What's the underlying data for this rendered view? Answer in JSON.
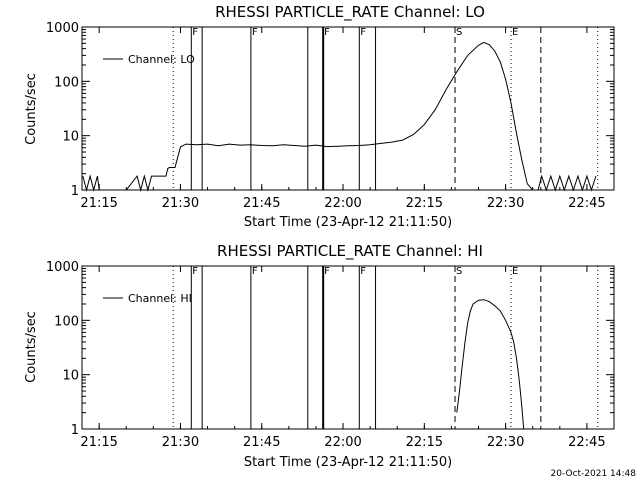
{
  "timestamp": "20-Oct-2021 14:48",
  "chart_data": [
    {
      "type": "line",
      "title": "RHESSI PARTICLE_RATE Channel: LO",
      "xlabel": "Start Time (23-Apr-12 21:11:50)",
      "ylabel": "Counts/sec",
      "y_scale": "log",
      "ylim": [
        1,
        1000
      ],
      "xlim": [
        "21:11:50",
        "22:50:00"
      ],
      "x_ticks": [
        "21:15",
        "21:30",
        "21:45",
        "22:00",
        "22:15",
        "22:30",
        "22:45"
      ],
      "y_ticks": [
        "1",
        "10",
        "100",
        "1000"
      ],
      "legend": {
        "position": "top-left",
        "entries": [
          "Channel: LO"
        ]
      },
      "series": [
        {
          "name": "Channel: LO",
          "x": [
            "21:12:00",
            "21:12:40",
            "21:13:20",
            "21:14:00",
            "21:14:40",
            "21:15:00",
            "21:16:30",
            "21:17:30",
            "21:18:30",
            "21:20:00",
            "21:22:00",
            "21:22:40",
            "21:23:20",
            "21:24:00",
            "21:24:40",
            "21:25:20",
            "21:26:00",
            "21:26:40",
            "21:27:20",
            "21:27:40",
            "21:28:00",
            "21:28:30",
            "21:29:00",
            "21:30:00",
            "21:31:00",
            "21:33:00",
            "21:35:00",
            "21:37:00",
            "21:39:00",
            "21:41:00",
            "21:43:00",
            "21:45:00",
            "21:47:00",
            "21:49:00",
            "21:51:00",
            "21:53:00",
            "21:55:00",
            "21:57:00",
            "21:59:00",
            "22:01:00",
            "22:03:00",
            "22:05:00",
            "22:07:00",
            "22:09:00",
            "22:11:00",
            "22:13:00",
            "22:15:00",
            "22:17:00",
            "22:19:00",
            "22:21:00",
            "22:23:00",
            "22:25:00",
            "22:26:00",
            "22:27:00",
            "22:28:00",
            "22:29:00",
            "22:30:00",
            "22:31:00",
            "22:32:00",
            "22:33:00",
            "22:34:00",
            "22:35:00",
            "22:36:00",
            "22:36:40",
            "22:37:30",
            "22:38:20",
            "22:39:10",
            "22:40:00",
            "22:40:50",
            "22:41:40",
            "22:42:30",
            "22:43:20",
            "22:44:10",
            "22:45:00",
            "22:45:50",
            "22:46:40"
          ],
          "values": [
            1.8,
            1,
            1.8,
            1,
            1.8,
            1,
            1,
            1,
            1,
            1,
            1.8,
            1,
            1.8,
            1,
            1.8,
            1.8,
            1.8,
            1.8,
            1.8,
            2.5,
            2.6,
            2.6,
            2.6,
            6.2,
            7,
            6.8,
            7,
            6.5,
            7,
            6.7,
            6.8,
            6.6,
            6.5,
            6.8,
            6.6,
            6.4,
            6.7,
            6.3,
            6.4,
            6.5,
            6.6,
            6.8,
            7.2,
            7.6,
            8.3,
            10.5,
            16,
            30,
            70,
            150,
            300,
            460,
            520,
            470,
            360,
            230,
            110,
            40,
            11,
            3.5,
            1.3,
            1,
            1,
            1.8,
            1,
            1.8,
            1,
            1.8,
            1,
            1.8,
            1,
            1.8,
            1,
            1.8,
            1,
            1.8
          ]
        }
      ],
      "annotations": [
        {
          "time": "21:28:40",
          "label": "",
          "style": "dotted"
        },
        {
          "time": "21:32:00",
          "label": "F",
          "style": "solid"
        },
        {
          "time": "21:34:00",
          "label": "",
          "style": "solid"
        },
        {
          "time": "21:43:00",
          "label": "F",
          "style": "solid"
        },
        {
          "time": "21:53:30",
          "label": "",
          "style": "solid"
        },
        {
          "time": "21:56:20",
          "label": "F",
          "style": "solid-thick"
        },
        {
          "time": "22:03:00",
          "label": "F",
          "style": "solid"
        },
        {
          "time": "22:06:00",
          "label": "",
          "style": "solid"
        },
        {
          "time": "22:20:40",
          "label": "S",
          "style": "dashed"
        },
        {
          "time": "22:31:00",
          "label": "E",
          "style": "dotted"
        },
        {
          "time": "22:36:30",
          "label": "",
          "style": "dashed"
        },
        {
          "time": "22:47:00",
          "label": "",
          "style": "dotted"
        }
      ]
    },
    {
      "type": "line",
      "title": "RHESSI PARTICLE_RATE Channel: HI",
      "xlabel": "Start Time (23-Apr-12 21:11:50)",
      "ylabel": "Counts/sec",
      "y_scale": "log",
      "ylim": [
        1,
        1000
      ],
      "xlim": [
        "21:11:50",
        "22:50:00"
      ],
      "x_ticks": [
        "21:15",
        "21:30",
        "21:45",
        "22:00",
        "22:15",
        "22:30",
        "22:45"
      ],
      "y_ticks": [
        "1",
        "10",
        "100",
        "1000"
      ],
      "legend": {
        "position": "top-left",
        "entries": [
          "Channel: HI"
        ]
      },
      "series": [
        {
          "name": "Channel: HI",
          "x": [
            "22:21:00",
            "22:21:30",
            "22:22:00",
            "22:22:30",
            "22:23:00",
            "22:23:30",
            "22:24:00",
            "22:25:00",
            "22:26:00",
            "22:27:00",
            "22:28:00",
            "22:29:00",
            "22:30:00",
            "22:31:00",
            "22:31:30",
            "22:32:00",
            "22:32:30",
            "22:33:00",
            "22:33:20"
          ],
          "values": [
            2,
            5,
            15,
            40,
            90,
            150,
            200,
            235,
            240,
            220,
            185,
            150,
            100,
            60,
            40,
            20,
            8,
            2.5,
            1
          ]
        }
      ],
      "annotations": [
        {
          "time": "21:28:40",
          "label": "",
          "style": "dotted"
        },
        {
          "time": "21:32:00",
          "label": "F",
          "style": "solid"
        },
        {
          "time": "21:34:00",
          "label": "",
          "style": "solid"
        },
        {
          "time": "21:43:00",
          "label": "F",
          "style": "solid"
        },
        {
          "time": "21:53:30",
          "label": "",
          "style": "solid"
        },
        {
          "time": "21:56:20",
          "label": "F",
          "style": "solid-thick"
        },
        {
          "time": "22:03:00",
          "label": "F",
          "style": "solid"
        },
        {
          "time": "22:06:00",
          "label": "",
          "style": "solid"
        },
        {
          "time": "22:20:40",
          "label": "S",
          "style": "dashed"
        },
        {
          "time": "22:31:00",
          "label": "E",
          "style": "dotted"
        },
        {
          "time": "22:36:30",
          "label": "",
          "style": "dashed"
        },
        {
          "time": "22:47:00",
          "label": "",
          "style": "dotted"
        }
      ]
    }
  ]
}
